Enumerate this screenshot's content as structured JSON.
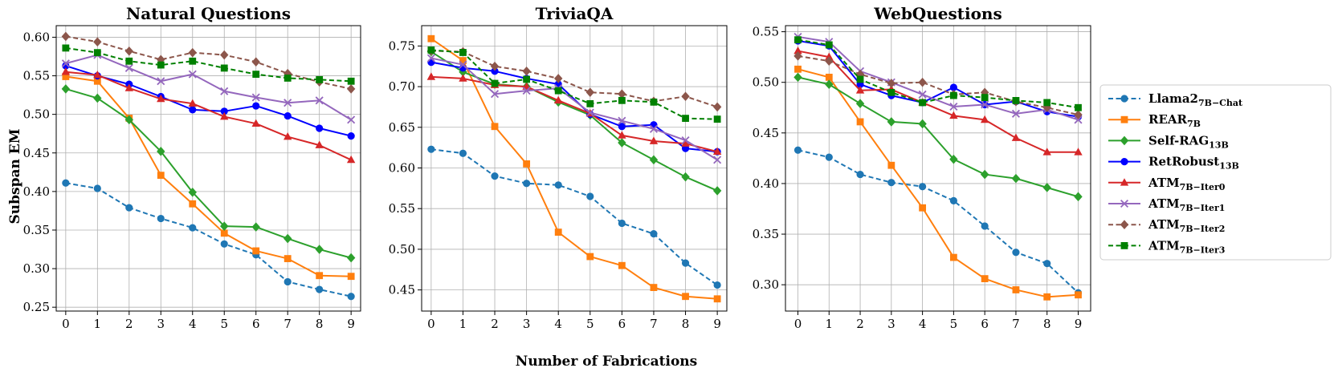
{
  "figure": {
    "ylabel": "Subspan EM",
    "xlabel": "Number of Fabrications"
  },
  "legend": [
    {
      "id": "llama2",
      "base": "Llama2",
      "sub": "7B−Chat",
      "color": "#1f77b4",
      "dash": true,
      "marker": "circle"
    },
    {
      "id": "rear",
      "base": "REAR",
      "sub": "7B",
      "color": "#ff7f0e",
      "dash": false,
      "marker": "square"
    },
    {
      "id": "selfrag",
      "base": "Self-RAG",
      "sub": "13B",
      "color": "#2ca02c",
      "dash": false,
      "marker": "diamond"
    },
    {
      "id": "retrobust",
      "base": "RetRobust",
      "sub": "13B",
      "color": "#0000ff",
      "dash": false,
      "marker": "circle"
    },
    {
      "id": "atm0",
      "base": "ATM",
      "sub": "7B−Iter0",
      "color": "#d62728",
      "dash": false,
      "marker": "triangle"
    },
    {
      "id": "atm1",
      "base": "ATM",
      "sub": "7B−Iter1",
      "color": "#9467bd",
      "dash": false,
      "marker": "x"
    },
    {
      "id": "atm2",
      "base": "ATM",
      "sub": "7B−Iter2",
      "color": "#8c564b",
      "dash": true,
      "marker": "diamond"
    },
    {
      "id": "atm3",
      "base": "ATM",
      "sub": "7B−Iter3",
      "color": "#008000",
      "dash": true,
      "marker": "square"
    }
  ],
  "chart_data": [
    {
      "type": "line",
      "title": "Natural Questions",
      "x": [
        0,
        1,
        2,
        3,
        4,
        5,
        6,
        7,
        8,
        9
      ],
      "ylim": [
        0.245,
        0.615
      ],
      "yticks": [
        0.25,
        0.3,
        0.35,
        0.4,
        0.45,
        0.5,
        0.55,
        0.6
      ],
      "grid": true,
      "series": [
        {
          "name": "Llama2 7B−Chat",
          "values": [
            0.411,
            0.404,
            0.379,
            0.365,
            0.353,
            0.332,
            0.318,
            0.283,
            0.273,
            0.264
          ]
        },
        {
          "name": "REAR 7B",
          "values": [
            0.549,
            0.543,
            0.495,
            0.421,
            0.384,
            0.346,
            0.323,
            0.313,
            0.291,
            0.29
          ]
        },
        {
          "name": "Self-RAG 13B",
          "values": [
            0.533,
            0.521,
            0.493,
            0.452,
            0.399,
            0.355,
            0.354,
            0.339,
            0.325,
            0.314
          ]
        },
        {
          "name": "RetRobust 13B",
          "values": [
            0.563,
            0.55,
            0.539,
            0.523,
            0.506,
            0.504,
            0.511,
            0.498,
            0.482,
            0.472
          ]
        },
        {
          "name": "ATM 7B−Iter0",
          "values": [
            0.555,
            0.551,
            0.534,
            0.52,
            0.514,
            0.497,
            0.488,
            0.471,
            0.46,
            0.441
          ]
        },
        {
          "name": "ATM 7B−Iter1",
          "values": [
            0.566,
            0.577,
            0.56,
            0.543,
            0.552,
            0.53,
            0.522,
            0.515,
            0.518,
            0.493
          ]
        },
        {
          "name": "ATM 7B−Iter2",
          "values": [
            0.601,
            0.594,
            0.582,
            0.571,
            0.58,
            0.577,
            0.568,
            0.553,
            0.542,
            0.533
          ]
        },
        {
          "name": "ATM 7B−Iter3",
          "values": [
            0.586,
            0.58,
            0.569,
            0.564,
            0.569,
            0.56,
            0.552,
            0.547,
            0.545,
            0.543
          ]
        }
      ]
    },
    {
      "type": "line",
      "title": "TriviaQA",
      "x": [
        0,
        1,
        2,
        3,
        4,
        5,
        6,
        7,
        8,
        9
      ],
      "ylim": [
        0.424,
        0.775
      ],
      "yticks": [
        0.45,
        0.5,
        0.55,
        0.6,
        0.65,
        0.7,
        0.75
      ],
      "grid": true,
      "series": [
        {
          "name": "Llama2 7B−Chat",
          "values": [
            0.623,
            0.618,
            0.59,
            0.581,
            0.579,
            0.565,
            0.532,
            0.519,
            0.483,
            0.456
          ]
        },
        {
          "name": "REAR 7B",
          "values": [
            0.759,
            0.732,
            0.651,
            0.605,
            0.521,
            0.491,
            0.48,
            0.453,
            0.442,
            0.439
          ]
        },
        {
          "name": "Self-RAG 13B",
          "values": [
            0.743,
            0.718,
            0.703,
            0.7,
            0.681,
            0.665,
            0.631,
            0.61,
            0.589,
            0.572
          ]
        },
        {
          "name": "RetRobust 13B",
          "values": [
            0.73,
            0.723,
            0.719,
            0.71,
            0.703,
            0.666,
            0.651,
            0.653,
            0.624,
            0.62
          ]
        },
        {
          "name": "ATM 7B−Iter0",
          "values": [
            0.712,
            0.71,
            0.702,
            0.7,
            0.683,
            0.667,
            0.64,
            0.633,
            0.63,
            0.62
          ]
        },
        {
          "name": "ATM 7B−Iter1",
          "values": [
            0.735,
            0.727,
            0.691,
            0.695,
            0.698,
            0.668,
            0.658,
            0.648,
            0.634,
            0.61
          ]
        },
        {
          "name": "ATM 7B−Iter2",
          "values": [
            0.744,
            0.743,
            0.725,
            0.719,
            0.71,
            0.693,
            0.691,
            0.682,
            0.688,
            0.675
          ]
        },
        {
          "name": "ATM 7B−Iter3",
          "values": [
            0.745,
            0.742,
            0.704,
            0.709,
            0.695,
            0.679,
            0.683,
            0.681,
            0.661,
            0.66
          ]
        }
      ]
    },
    {
      "type": "line",
      "title": "WebQuestions",
      "x": [
        0,
        1,
        2,
        3,
        4,
        5,
        6,
        7,
        8,
        9
      ],
      "ylim": [
        0.274,
        0.556
      ],
      "yticks": [
        0.3,
        0.35,
        0.4,
        0.45,
        0.5,
        0.55
      ],
      "grid": true,
      "series": [
        {
          "name": "Llama2 7B−Chat",
          "values": [
            0.433,
            0.426,
            0.409,
            0.401,
            0.397,
            0.383,
            0.358,
            0.332,
            0.321,
            0.292
          ]
        },
        {
          "name": "REAR 7B",
          "values": [
            0.513,
            0.505,
            0.461,
            0.418,
            0.376,
            0.327,
            0.306,
            0.295,
            0.288,
            0.29
          ]
        },
        {
          "name": "Self-RAG 13B",
          "values": [
            0.505,
            0.498,
            0.479,
            0.461,
            0.459,
            0.424,
            0.409,
            0.405,
            0.396,
            0.387
          ]
        },
        {
          "name": "RetRobust 13B",
          "values": [
            0.541,
            0.536,
            0.498,
            0.487,
            0.48,
            0.495,
            0.478,
            0.481,
            0.471,
            0.466
          ]
        },
        {
          "name": "ATM 7B−Iter0",
          "values": [
            0.531,
            0.525,
            0.492,
            0.493,
            0.48,
            0.467,
            0.463,
            0.445,
            0.431,
            0.431
          ]
        },
        {
          "name": "ATM 7B−Iter1",
          "values": [
            0.545,
            0.54,
            0.511,
            0.5,
            0.488,
            0.476,
            0.478,
            0.469,
            0.473,
            0.463
          ]
        },
        {
          "name": "ATM 7B−Iter2",
          "values": [
            0.526,
            0.521,
            0.508,
            0.499,
            0.5,
            0.488,
            0.49,
            0.481,
            0.475,
            0.468
          ]
        },
        {
          "name": "ATM 7B−Iter3",
          "values": [
            0.542,
            0.537,
            0.503,
            0.49,
            0.48,
            0.487,
            0.485,
            0.482,
            0.48,
            0.475
          ]
        }
      ]
    }
  ]
}
